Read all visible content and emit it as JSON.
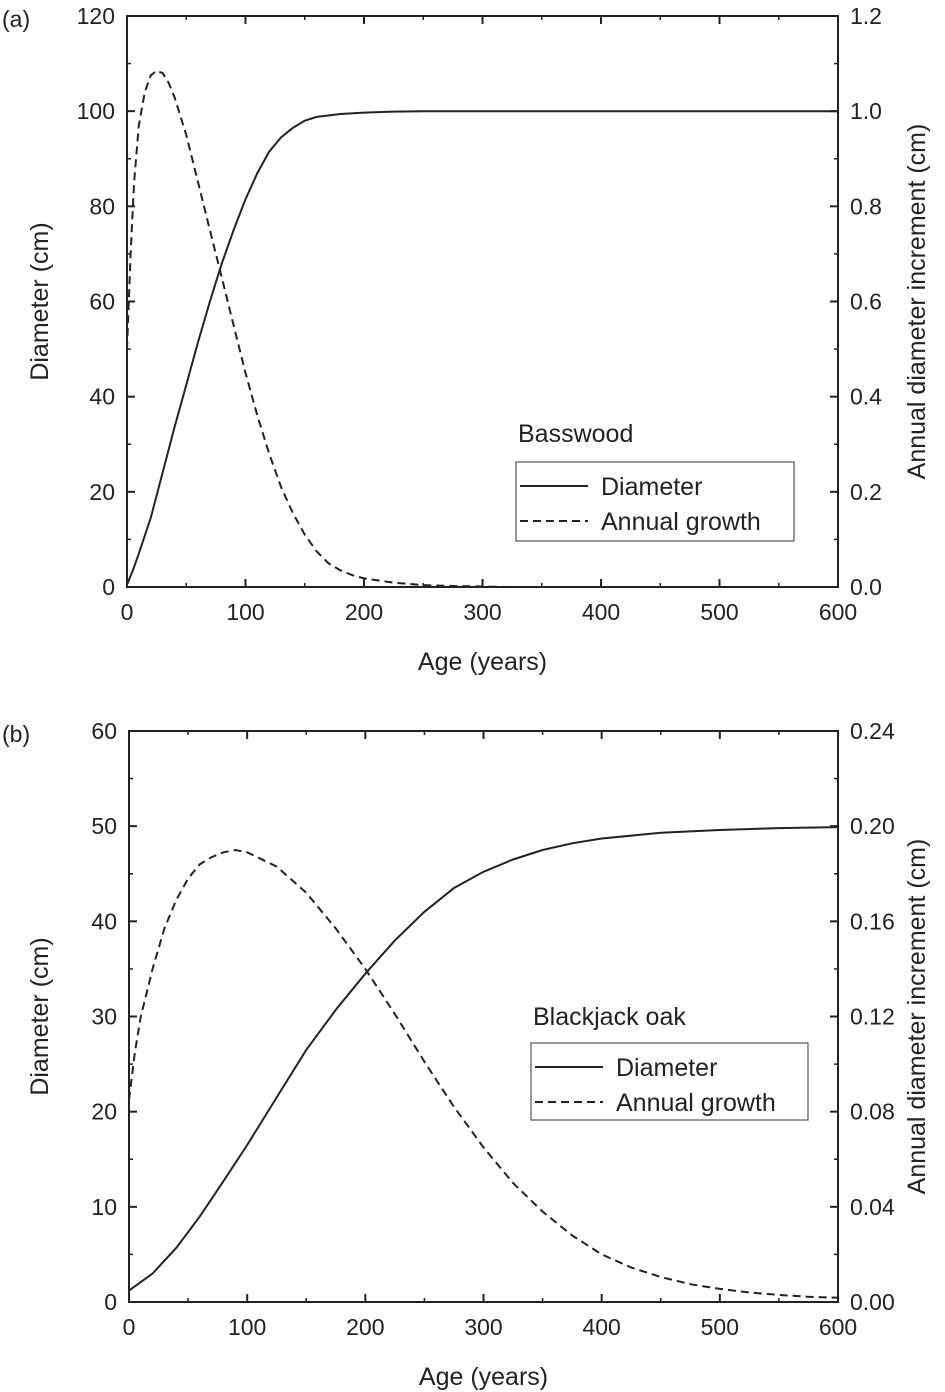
{
  "chart_data": [
    {
      "panel_label": "(a)",
      "type": "line",
      "annotation": "Basswood",
      "xlabel": "Age (years)",
      "ylabel_left": "Diameter (cm)",
      "ylabel_right": "Annual diameter increment (cm)",
      "xlim": [
        0,
        600
      ],
      "ylim_left": [
        0,
        120
      ],
      "ylim_right": [
        0,
        1.2
      ],
      "x_ticks": [
        "0",
        "100",
        "200",
        "300",
        "400",
        "500",
        "600"
      ],
      "y_left_ticks": [
        "0",
        "20",
        "40",
        "60",
        "80",
        "100",
        "120"
      ],
      "y_right_ticks": [
        "0.0",
        "0.2",
        "0.4",
        "0.6",
        "0.8",
        "1.0",
        "1.2"
      ],
      "legend": {
        "position": "lower-right",
        "entries": [
          {
            "label": "Diameter",
            "style": "solid"
          },
          {
            "label": "Annual growth",
            "style": "dashed"
          }
        ]
      },
      "grid": false,
      "series": [
        {
          "name": "Diameter",
          "axis": "left",
          "style": "solid",
          "x": [
            0,
            5,
            10,
            20,
            30,
            40,
            50,
            60,
            70,
            80,
            90,
            100,
            110,
            120,
            130,
            140,
            150,
            160,
            180,
            200,
            225,
            250,
            300,
            350,
            400,
            500,
            600
          ],
          "y": [
            0.5,
            3.5,
            7,
            14.5,
            24,
            33.5,
            42.5,
            51.5,
            60,
            68,
            75,
            81.5,
            87,
            91.5,
            94.5,
            96.5,
            98,
            98.8,
            99.4,
            99.7,
            99.9,
            100,
            100,
            100,
            100,
            100,
            100
          ]
        },
        {
          "name": "Annual growth",
          "axis": "right",
          "style": "dashed",
          "x": [
            0,
            3,
            6,
            10,
            15,
            20,
            25,
            30,
            35,
            40,
            50,
            60,
            70,
            80,
            90,
            100,
            110,
            120,
            130,
            140,
            150,
            160,
            170,
            180,
            190,
            200,
            225,
            250,
            275,
            300,
            325,
            340
          ],
          "y": [
            0.5,
            0.7,
            0.85,
            0.97,
            1.04,
            1.075,
            1.085,
            1.08,
            1.06,
            1.03,
            0.95,
            0.85,
            0.75,
            0.65,
            0.55,
            0.45,
            0.36,
            0.28,
            0.21,
            0.155,
            0.11,
            0.075,
            0.05,
            0.035,
            0.025,
            0.018,
            0.009,
            0.004,
            0.002,
            0.001,
            0.0,
            0.0
          ]
        }
      ]
    },
    {
      "panel_label": "(b)",
      "type": "line",
      "annotation": "Blackjack oak",
      "xlabel": "Age (years)",
      "ylabel_left": "Diameter (cm)",
      "ylabel_right": "Annual diameter increment (cm)",
      "xlim": [
        0,
        600
      ],
      "ylim_left": [
        0,
        60
      ],
      "ylim_right": [
        0,
        0.24
      ],
      "x_ticks": [
        "0",
        "100",
        "200",
        "300",
        "400",
        "500",
        "600"
      ],
      "y_left_ticks": [
        "0",
        "10",
        "20",
        "30",
        "40",
        "50",
        "60"
      ],
      "y_right_ticks": [
        "0.00",
        "0.04",
        "0.08",
        "0.12",
        "0.16",
        "0.20",
        "0.24"
      ],
      "legend": {
        "position": "middle-right",
        "entries": [
          {
            "label": "Diameter",
            "style": "solid"
          },
          {
            "label": "Annual growth",
            "style": "dashed"
          }
        ]
      },
      "grid": false,
      "series": [
        {
          "name": "Diameter",
          "axis": "left",
          "style": "solid",
          "x": [
            0,
            20,
            40,
            60,
            80,
            100,
            125,
            150,
            175,
            200,
            225,
            250,
            275,
            300,
            325,
            350,
            375,
            400,
            450,
            500,
            550,
            600
          ],
          "y": [
            1.2,
            3,
            5.7,
            9,
            12.7,
            16.5,
            21.5,
            26.5,
            30.7,
            34.5,
            38,
            41,
            43.5,
            45.2,
            46.5,
            47.5,
            48.2,
            48.7,
            49.3,
            49.6,
            49.8,
            49.9
          ]
        },
        {
          "name": "Annual growth",
          "axis": "right",
          "style": "dashed",
          "x": [
            0,
            5,
            10,
            20,
            30,
            40,
            50,
            60,
            70,
            80,
            90,
            100,
            125,
            150,
            175,
            200,
            225,
            250,
            275,
            300,
            325,
            350,
            375,
            400,
            425,
            450,
            475,
            500,
            525,
            550,
            575,
            600
          ],
          "y": [
            0.085,
            0.105,
            0.12,
            0.14,
            0.157,
            0.169,
            0.178,
            0.184,
            0.187,
            0.189,
            0.19,
            0.189,
            0.183,
            0.172,
            0.157,
            0.14,
            0.121,
            0.101,
            0.082,
            0.065,
            0.05,
            0.038,
            0.028,
            0.02,
            0.0145,
            0.0105,
            0.0075,
            0.0055,
            0.004,
            0.003,
            0.0022,
            0.0018
          ]
        }
      ]
    }
  ]
}
